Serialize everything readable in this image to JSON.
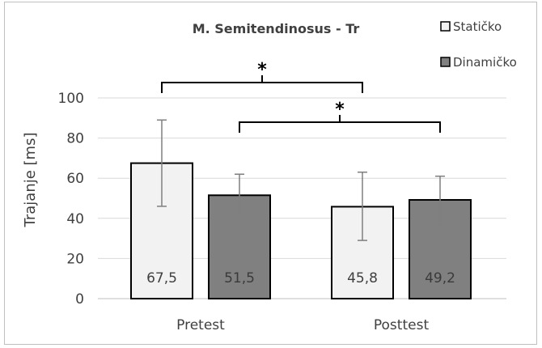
{
  "chart_data": {
    "type": "bar",
    "title": "M. Semitendinosus - Tr",
    "xlabel": "",
    "ylabel": "Trajanje [ms]",
    "categories": [
      "Pretest",
      "Posttest"
    ],
    "series": [
      {
        "name": "Statičko",
        "values": [
          67.5,
          45.8
        ],
        "error_low": [
          46,
          29
        ],
        "error_high": [
          89,
          63
        ],
        "labels": [
          "67,5",
          "45,8"
        ],
        "color": "#f2f2f2"
      },
      {
        "name": "Dinamičko",
        "values": [
          51.5,
          49.2
        ],
        "error_low": [
          41,
          37
        ],
        "error_high": [
          62,
          61
        ],
        "labels": [
          "51,5",
          "49,2"
        ],
        "color": "#808080"
      }
    ],
    "ylim": [
      0,
      100
    ],
    "yticks": [
      0,
      20,
      40,
      60,
      80,
      100
    ],
    "grid": true,
    "legend_position": "top-right",
    "significance": [
      {
        "label": "*",
        "between": "Pretest Statičko vs Posttest Statičko"
      },
      {
        "label": "*",
        "between": "Pretest Dinamičko vs Posttest Dinamičko"
      }
    ]
  }
}
